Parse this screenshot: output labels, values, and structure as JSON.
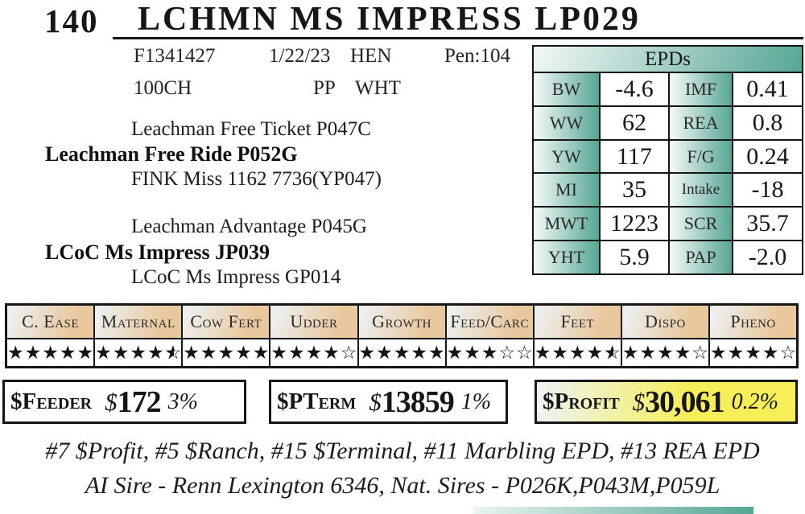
{
  "page": {
    "lot_number": "140",
    "title": "LCHMN MS IMPRESS LP029"
  },
  "info": {
    "reg_number": "F1341427",
    "birth_date": "1/22/23",
    "sex": "HEN",
    "pen": "Pen:104",
    "breed": "100CH",
    "polled": "PP",
    "color": "WHT"
  },
  "pedigree": {
    "sire_of_sire": "Leachman Free Ticket P047C",
    "sire": "Leachman Free Ride P052G",
    "dam_of_sire": "FINK Miss 1162 7736(YP047)",
    "sire_of_dam": "Leachman Advantage P045G",
    "dam": "LCoC Ms Impress JP039",
    "dam_of_dam": "LCoC Ms Impress GP014"
  },
  "epds": {
    "header": "EPDs",
    "rows": [
      {
        "label1": "BW",
        "value1": "-4.6",
        "label2": "IMF",
        "value2": "0.41"
      },
      {
        "label1": "WW",
        "value1": "62",
        "label2": "REA",
        "value2": "0.8"
      },
      {
        "label1": "YW",
        "value1": "117",
        "label2": "F/G",
        "value2": "0.24"
      },
      {
        "label1": "MI",
        "value1": "35",
        "label2": "Intake",
        "value2": "-18"
      },
      {
        "label1": "MWT",
        "value1": "1223",
        "label2": "SCR",
        "value2": "35.7"
      },
      {
        "label1": "YHT",
        "value1": "5.9",
        "label2": "PAP",
        "value2": "-2.0"
      }
    ]
  },
  "traits": [
    {
      "label": "C. Ease",
      "full": 5,
      "half": 0,
      "empty": 0
    },
    {
      "label": "Maternal",
      "full": 4,
      "half": 1,
      "empty": 0
    },
    {
      "label": "Cow Fert",
      "full": 5,
      "half": 0,
      "empty": 0
    },
    {
      "label": "Udder",
      "full": 4,
      "half": 0,
      "empty": 1
    },
    {
      "label": "Growth",
      "full": 5,
      "half": 0,
      "empty": 0
    },
    {
      "label": "Feed/Carc",
      "full": 3,
      "half": 0,
      "empty": 2
    },
    {
      "label": "Feet",
      "full": 4,
      "half": 1,
      "empty": 0
    },
    {
      "label": "Dispo",
      "full": 4,
      "half": 0,
      "empty": 1
    },
    {
      "label": "Pheno",
      "full": 4,
      "half": 0,
      "empty": 1
    }
  ],
  "indexes": [
    {
      "name": "$Feeder",
      "value": "$172",
      "percent": "3%",
      "highlight": false
    },
    {
      "name": "$PTerm",
      "value": "$13859",
      "percent": "1%",
      "highlight": false
    },
    {
      "name": "$Profit",
      "value": "$30,061",
      "percent": "0.2%",
      "highlight": true
    }
  ],
  "footer": {
    "rankings": "#7 $Profit, #5 $Ranch, #15 $Terminal, #11 Marbling EPD, #13 REA EPD",
    "sires": "AI Sire - Renn Lexington 6346, Nat. Sires - P026K,P043M,P059L"
  },
  "colors": {
    "accent_teal": "#56a695",
    "accent_tan": "#e9c89e",
    "highlight_yellow": "#f6ef58",
    "border_black": "#161616"
  }
}
